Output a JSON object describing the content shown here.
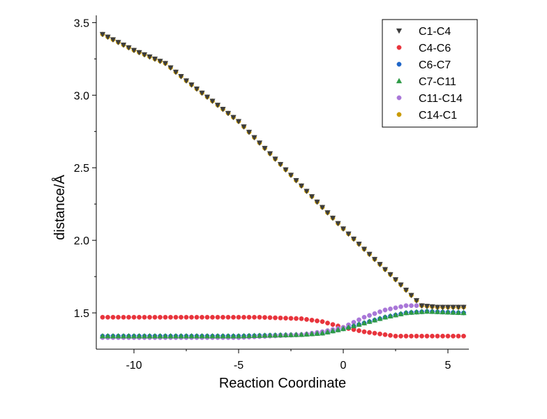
{
  "chart_data": {
    "type": "scatter",
    "xlabel": "Reaction Coordinate",
    "ylabel": "distance/Å",
    "xlim": [
      -11.8,
      6.0
    ],
    "ylim": [
      1.25,
      3.55
    ],
    "xticks": [
      -10,
      -5,
      0,
      5
    ],
    "yticks": [
      1.5,
      2.0,
      2.5,
      3.0,
      3.5
    ],
    "xtick_labels": [
      "-10",
      "-5",
      "0",
      "5"
    ],
    "ytick_labels": [
      "1.5",
      "2.0",
      "2.5",
      "3.0",
      "3.5"
    ],
    "grid": false,
    "legend_position": "top-right",
    "x_range": {
      "start": -11.5,
      "end": 5.75,
      "step": 0.25
    },
    "series": [
      {
        "name": "C1-C4",
        "marker": "triangle-down",
        "color": "#3c3c3c",
        "shape": "c14c1"
      },
      {
        "name": "C4-C6",
        "marker": "circle",
        "color": "#e8343c",
        "shape": "c4c6"
      },
      {
        "name": "C6-C7",
        "marker": "circle",
        "color": "#1f66c8",
        "shape": "c6c7"
      },
      {
        "name": "C7-C11",
        "marker": "triangle-up",
        "color": "#2e9a46",
        "shape": "c7c11"
      },
      {
        "name": "C11-C14",
        "marker": "circle",
        "color": "#a977d8",
        "shape": "c11c14"
      },
      {
        "name": "C14-C1",
        "marker": "circle",
        "color": "#c99a00",
        "shape": "c14c1"
      }
    ],
    "anchor_points": {
      "c14c1": [
        [
          -11.5,
          3.42
        ],
        [
          -10.0,
          3.31
        ],
        [
          -8.5,
          3.22
        ],
        [
          -7.5,
          3.1
        ],
        [
          -5.0,
          2.82
        ],
        [
          0.0,
          2.08
        ],
        [
          2.5,
          1.73
        ],
        [
          3.75,
          1.55
        ],
        [
          4.5,
          1.54
        ],
        [
          5.75,
          1.54
        ]
      ],
      "c4c6": [
        [
          -11.5,
          1.47
        ],
        [
          -4.0,
          1.47
        ],
        [
          -2.0,
          1.46
        ],
        [
          -1.0,
          1.44
        ],
        [
          0.0,
          1.4
        ],
        [
          1.0,
          1.37
        ],
        [
          2.5,
          1.34
        ],
        [
          5.75,
          1.34
        ]
      ],
      "c6c7": [
        [
          -11.5,
          1.34
        ],
        [
          -5.0,
          1.34
        ],
        [
          -2.0,
          1.35
        ],
        [
          -1.0,
          1.36
        ],
        [
          0.0,
          1.39
        ],
        [
          1.0,
          1.43
        ],
        [
          2.0,
          1.47
        ],
        [
          3.0,
          1.5
        ],
        [
          4.0,
          1.51
        ],
        [
          5.75,
          1.5
        ]
      ],
      "c7c11": [
        [
          -11.5,
          1.34
        ],
        [
          -5.0,
          1.34
        ],
        [
          -2.0,
          1.35
        ],
        [
          -1.0,
          1.36
        ],
        [
          0.0,
          1.39
        ],
        [
          1.0,
          1.43
        ],
        [
          2.0,
          1.47
        ],
        [
          3.0,
          1.5
        ],
        [
          4.0,
          1.51
        ],
        [
          5.75,
          1.5
        ]
      ],
      "c11c14": [
        [
          -11.5,
          1.33
        ],
        [
          -5.0,
          1.33
        ],
        [
          -2.0,
          1.35
        ],
        [
          -1.0,
          1.37
        ],
        [
          0.0,
          1.4
        ],
        [
          1.0,
          1.47
        ],
        [
          2.0,
          1.52
        ],
        [
          3.0,
          1.55
        ],
        [
          3.75,
          1.55
        ],
        [
          4.5,
          1.54
        ],
        [
          5.75,
          1.54
        ]
      ]
    }
  }
}
